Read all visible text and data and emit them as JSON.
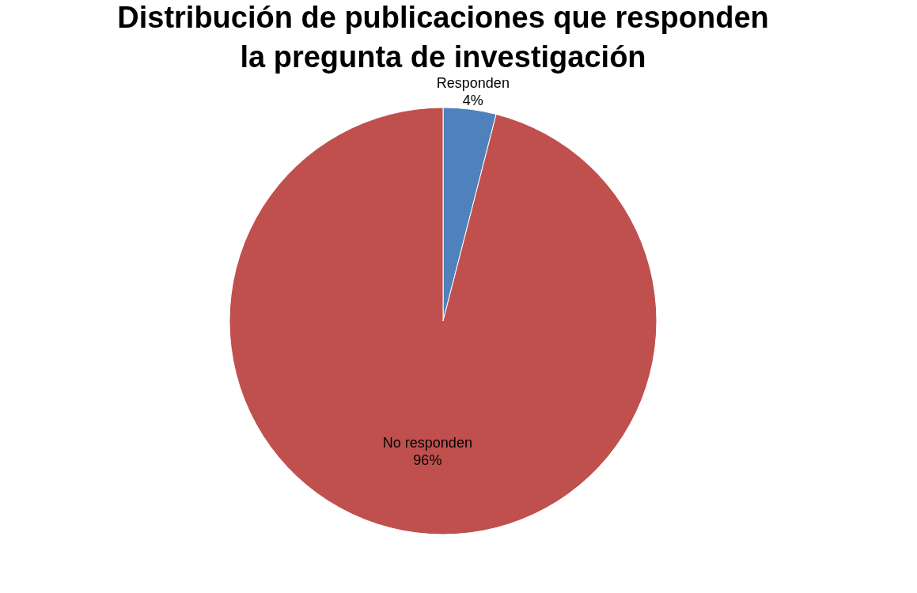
{
  "chart_data": {
    "type": "pie",
    "title": "Distribución de publicaciones que responden la pregunta de investigación",
    "categories": [
      "Responden",
      "No responden"
    ],
    "values": [
      4,
      96
    ],
    "colors": [
      "#4f81bd",
      "#c0504d"
    ],
    "value_labels": [
      "4%",
      "96%"
    ],
    "legend": false
  }
}
